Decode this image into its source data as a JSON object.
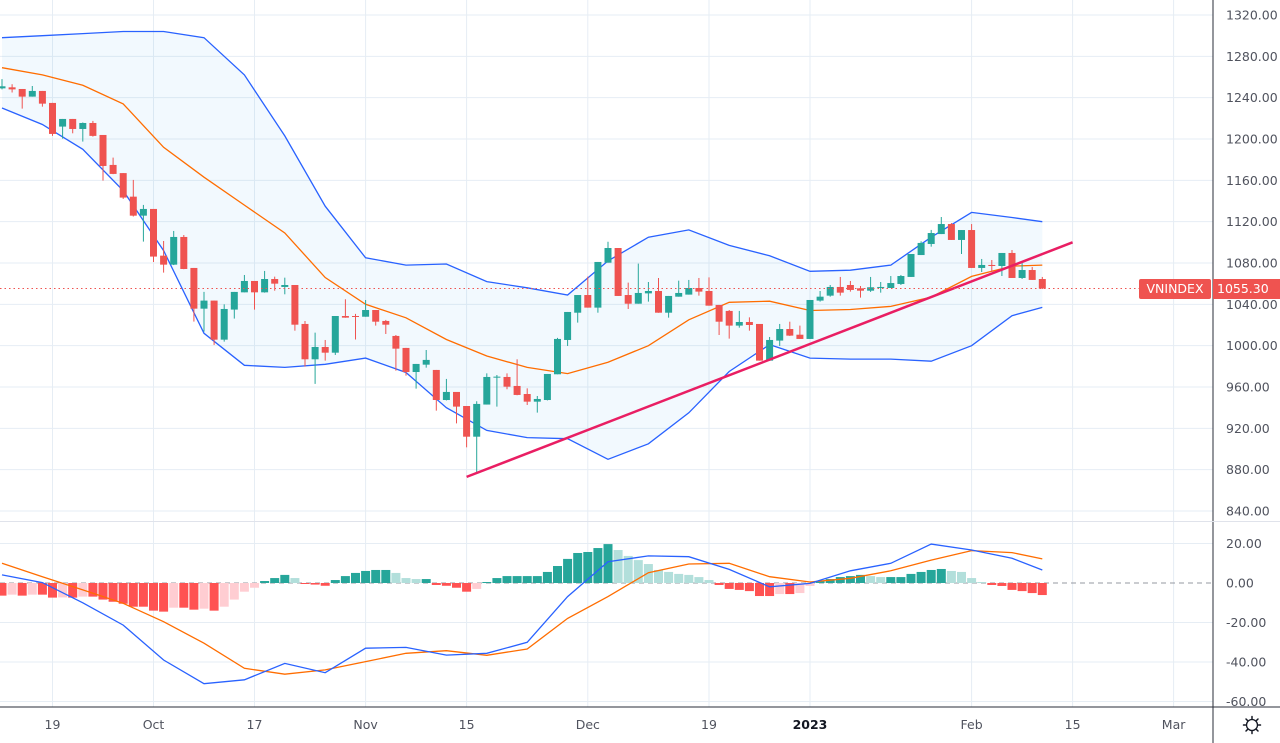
{
  "symbol": "VNINDEX",
  "last_price_label": "1055.30",
  "colors": {
    "up": "#26a69a",
    "down": "#ef5350",
    "hist_up_strong": "#26a69a",
    "hist_up_weak": "#b2dfdb",
    "hist_down_strong": "#ff5252",
    "hist_down_weak": "#ffcdd2",
    "bb_band": "#2962ff",
    "bb_basis": "#ff6d00",
    "bb_fill": "#2196f3",
    "macd": "#2962ff",
    "signal": "#ff6d00",
    "trendline": "#e91e63",
    "last_price": "#ef5350",
    "grid": "#e6edf4"
  },
  "settings_icon": "gear-icon",
  "chart_data": [
    {
      "type": "candlestick",
      "title": "",
      "yaxis": {
        "range": [
          830,
          1330
        ],
        "ticks": [
          "1320.00",
          "1280.00",
          "1240.00",
          "1200.00",
          "1160.00",
          "1120.00",
          "1080.00",
          "1040.00",
          "1000.00",
          "960.00",
          "920.00",
          "880.00",
          "840.00"
        ]
      },
      "xaxis": {
        "ticks": [
          {
            "label": "19",
            "date": "2022-09-19"
          },
          {
            "label": "Oct",
            "date": "2022-10-03"
          },
          {
            "label": "17",
            "date": "2022-10-17"
          },
          {
            "label": "Nov",
            "date": "2022-11-01"
          },
          {
            "label": "15",
            "date": "2022-11-15"
          },
          {
            "label": "Dec",
            "date": "2022-12-01"
          },
          {
            "label": "19",
            "date": "2022-12-19"
          },
          {
            "label": "2023",
            "date": "2023-01-03",
            "bold": true
          },
          {
            "label": "Feb",
            "date": "2023-02-01"
          },
          {
            "label": "15",
            "date": "2023-02-15"
          },
          {
            "label": "Mar",
            "date": "2023-03-01"
          }
        ]
      },
      "grid": true,
      "last_price": 1055.3,
      "candles_columns": [
        "date",
        "open",
        "high",
        "low",
        "close"
      ],
      "candles": [
        [
          "2022-09-12",
          1249,
          1258,
          1248,
          1251
        ],
        [
          "2022-09-13",
          1250,
          1253,
          1245,
          1248
        ],
        [
          "2022-09-14",
          1248.4,
          1248.4,
          1229.4,
          1241
        ],
        [
          "2022-09-15",
          1241,
          1251.3,
          1241,
          1246.5
        ],
        [
          "2022-09-16",
          1246.5,
          1246.5,
          1231.3,
          1234.2
        ],
        [
          "2022-09-19",
          1234.9,
          1235,
          1203,
          1204.9
        ],
        [
          "2022-09-20",
          1212,
          1219.4,
          1200.4,
          1219.4
        ],
        [
          "2022-09-21",
          1219.4,
          1219.4,
          1205.5,
          1209.7
        ],
        [
          "2022-09-22",
          1209.7,
          1216,
          1197.5,
          1215.5
        ],
        [
          "2022-09-23",
          1215.5,
          1217.5,
          1202.3,
          1203
        ],
        [
          "2022-09-26",
          1203.9,
          1203.9,
          1159.7,
          1173.9
        ],
        [
          "2022-09-27",
          1174.9,
          1182,
          1166,
          1166.2
        ],
        [
          "2022-09-28",
          1167,
          1167,
          1142,
          1143.3
        ],
        [
          "2022-09-29",
          1144.2,
          1160.4,
          1125,
          1125.8
        ],
        [
          "2022-09-30",
          1125.8,
          1136.2,
          1100.7,
          1132.3
        ],
        [
          "2022-10-03",
          1132.3,
          1132.3,
          1081,
          1086.2
        ],
        [
          "2022-10-04",
          1087.1,
          1101.3,
          1070.7,
          1078.4
        ],
        [
          "2022-10-05",
          1078.4,
          1111,
          1078,
          1105.2
        ],
        [
          "2022-10-06",
          1105.2,
          1107.1,
          1074,
          1074.2
        ],
        [
          "2022-10-07",
          1075.2,
          1075.2,
          1023.3,
          1035.8
        ],
        [
          "2022-10-10",
          1035.8,
          1052,
          1013.6,
          1043.6
        ],
        [
          "2022-10-11",
          1043.6,
          1043.6,
          1000.7,
          1005.8
        ],
        [
          "2022-10-12",
          1005.8,
          1040,
          1003.9,
          1035.5
        ],
        [
          "2022-10-13",
          1034.9,
          1052,
          1026.2,
          1052
        ],
        [
          "2022-10-14",
          1051.6,
          1068.4,
          1051.6,
          1062.6
        ],
        [
          "2022-10-17",
          1062.6,
          1062.6,
          1034.9,
          1051.6
        ],
        [
          "2022-10-18",
          1051.6,
          1072.3,
          1051.3,
          1064.5
        ],
        [
          "2022-10-19",
          1064.5,
          1066.8,
          1053.2,
          1060
        ],
        [
          "2022-10-20",
          1056.8,
          1065.8,
          1049.7,
          1058.7
        ],
        [
          "2022-10-21",
          1058.7,
          1058.7,
          1014.5,
          1020.3
        ],
        [
          "2022-10-24",
          1021,
          1023.9,
          979.7,
          986.8
        ],
        [
          "2022-10-25",
          986.8,
          1012.6,
          963,
          998.7
        ],
        [
          "2022-10-26",
          998.7,
          1005.5,
          985.5,
          993.2
        ],
        [
          "2022-10-27",
          993.2,
          1028.7,
          991,
          1028.7
        ],
        [
          "2022-10-28",
          1028.7,
          1044.9,
          1027,
          1027.1
        ],
        [
          "2022-10-31",
          1028.7,
          1030.7,
          1006,
          1028
        ],
        [
          "2022-11-01",
          1028,
          1044.2,
          1028,
          1034.5
        ],
        [
          "2022-11-02",
          1034.5,
          1034.5,
          1019.4,
          1023.2
        ],
        [
          "2022-11-03",
          1023.9,
          1024.9,
          1011.3,
          1020.3
        ],
        [
          "2022-11-04",
          1009.4,
          1010.3,
          975.8,
          997.1
        ],
        [
          "2022-11-07",
          997.8,
          997.8,
          971,
          974.5
        ],
        [
          "2022-11-08",
          974.5,
          982.3,
          958.4,
          982.3
        ],
        [
          "2022-11-09",
          981.6,
          995.8,
          978.7,
          986.2
        ],
        [
          "2022-11-10",
          976.5,
          976.5,
          937.1,
          947.4
        ],
        [
          "2022-11-11",
          947.4,
          967.8,
          947,
          955.2
        ],
        [
          "2022-11-14",
          955.2,
          955.2,
          924.8,
          941
        ],
        [
          "2022-11-15",
          941.6,
          941.6,
          901.6,
          911.9
        ],
        [
          "2022-11-16",
          911.9,
          946.2,
          876.5,
          943.6
        ],
        [
          "2022-11-17",
          943,
          973.2,
          943,
          969.7
        ],
        [
          "2022-11-18",
          969.3,
          971.6,
          941,
          970
        ],
        [
          "2022-11-21",
          969.7,
          973.2,
          957.8,
          960.3
        ],
        [
          "2022-11-22",
          961,
          986.8,
          952,
          952.3
        ],
        [
          "2022-11-23",
          953.2,
          958.7,
          942.6,
          945.8
        ],
        [
          "2022-11-24",
          945.8,
          951.3,
          935.2,
          948.4
        ],
        [
          "2022-11-25",
          947.4,
          972.6,
          947,
          972.6
        ],
        [
          "2022-11-28",
          972.3,
          1007.5,
          972.3,
          1006.5
        ],
        [
          "2022-11-29",
          1005.5,
          1032.6,
          999.7,
          1032.6
        ],
        [
          "2022-11-30",
          1031.9,
          1049,
          1022.3,
          1049
        ],
        [
          "2022-12-01",
          1049,
          1066.8,
          1036.8,
          1036.8
        ],
        [
          "2022-12-02",
          1036.8,
          1081,
          1031.9,
          1081
        ],
        [
          "2022-12-05",
          1080.3,
          1100.6,
          1080.3,
          1094.5
        ],
        [
          "2022-12-06",
          1094.5,
          1094.5,
          1048.1,
          1048.1
        ],
        [
          "2022-12-07",
          1049,
          1061,
          1035.5,
          1040.6
        ],
        [
          "2022-12-08",
          1040.6,
          1079.4,
          1040.6,
          1051
        ],
        [
          "2022-12-09",
          1050.6,
          1061.6,
          1042.6,
          1052.9
        ],
        [
          "2022-12-12",
          1052.9,
          1065.5,
          1031.9,
          1031.9
        ],
        [
          "2022-12-13",
          1031.9,
          1048.1,
          1027.1,
          1048.1
        ],
        [
          "2022-12-14",
          1047.4,
          1062.9,
          1047.4,
          1051
        ],
        [
          "2022-12-15",
          1049.4,
          1063.6,
          1049.4,
          1055.8
        ],
        [
          "2022-12-16",
          1055.8,
          1065.5,
          1048.4,
          1052.3
        ],
        [
          "2022-12-19",
          1052.9,
          1066.1,
          1038.7,
          1038.7
        ],
        [
          "2022-12-20",
          1039.4,
          1039.4,
          1010.3,
          1023.2
        ],
        [
          "2022-12-21",
          1033.6,
          1034.5,
          1006.8,
          1019.4
        ],
        [
          "2022-12-22",
          1019.4,
          1033.6,
          1017.4,
          1022.9
        ],
        [
          "2022-12-23",
          1022.9,
          1027.4,
          1014.5,
          1020
        ],
        [
          "2022-12-26",
          1021,
          1021,
          985.5,
          985.5
        ],
        [
          "2022-12-27",
          985.5,
          1008.4,
          985.5,
          1005.5
        ],
        [
          "2022-12-28",
          1004.9,
          1021,
          999.7,
          1016.1
        ],
        [
          "2022-12-29",
          1016.1,
          1023.2,
          1009.4,
          1009.7
        ],
        [
          "2022-12-30",
          1010.6,
          1019.4,
          1006.5,
          1006.5
        ],
        [
          "2023-01-03",
          1006.5,
          1044.2,
          1006.5,
          1044.2
        ],
        [
          "2023-01-04",
          1043.6,
          1052.9,
          1042.6,
          1047.4
        ],
        [
          "2023-01-05",
          1048.4,
          1058.7,
          1047.4,
          1056.8
        ],
        [
          "2023-01-06",
          1056.8,
          1066.5,
          1048.4,
          1051.3
        ],
        [
          "2023-01-09",
          1058.7,
          1062.6,
          1052.3,
          1053.9
        ],
        [
          "2023-01-10",
          1055.5,
          1057.7,
          1046.5,
          1053.2
        ],
        [
          "2023-01-11",
          1053.2,
          1066.5,
          1052,
          1056.5
        ],
        [
          "2023-01-12",
          1056.2,
          1061.6,
          1051.3,
          1056.8
        ],
        [
          "2023-01-13",
          1055.8,
          1067.4,
          1055.8,
          1060.6
        ],
        [
          "2023-01-16",
          1059.7,
          1068.4,
          1058.7,
          1067.4
        ],
        [
          "2023-01-17",
          1066.5,
          1088.7,
          1066.5,
          1088.7
        ],
        [
          "2023-01-18",
          1087.7,
          1101,
          1087.7,
          1099.4
        ],
        [
          "2023-01-19",
          1098.4,
          1112,
          1095.8,
          1109
        ],
        [
          "2023-01-27",
          1108,
          1124.5,
          1108,
          1117.7
        ],
        [
          "2023-01-30",
          1117.7,
          1118.7,
          1102.3,
          1102.3
        ],
        [
          "2023-01-31",
          1102.3,
          1111.9,
          1088.7,
          1111.9
        ],
        [
          "2023-02-01",
          1111.9,
          1117.7,
          1075.2,
          1075.2
        ],
        [
          "2023-02-02",
          1075.2,
          1083.9,
          1071.3,
          1078.1
        ],
        [
          "2023-02-03",
          1078.1,
          1082.9,
          1071.3,
          1077.1
        ],
        [
          "2023-02-06",
          1077.1,
          1089.7,
          1067.4,
          1089.7
        ],
        [
          "2023-02-07",
          1089.7,
          1092.6,
          1065.5,
          1065.5
        ],
        [
          "2023-02-08",
          1065.5,
          1080,
          1064.5,
          1073.2
        ],
        [
          "2023-02-09",
          1073.2,
          1076.1,
          1063.6,
          1063.6
        ],
        [
          "2023-02-10",
          1064.5,
          1066.5,
          1054.8,
          1055.3
        ]
      ],
      "overlay_dates": [
        "2022-09-12",
        "2022-09-16",
        "2022-09-22",
        "2022-09-28",
        "2022-10-04",
        "2022-10-10",
        "2022-10-14",
        "2022-10-20",
        "2022-10-26",
        "2022-11-01",
        "2022-11-07",
        "2022-11-11",
        "2022-11-17",
        "2022-11-23",
        "2022-11-29",
        "2022-12-05",
        "2022-12-09",
        "2022-12-15",
        "2022-12-21",
        "2022-12-27",
        "2023-01-03",
        "2023-01-09",
        "2023-01-13",
        "2023-01-19",
        "2023-02-01",
        "2023-02-07",
        "2023-02-10"
      ],
      "bollinger": {
        "upper": [
          1298,
          1300,
          1302,
          1304,
          1304,
          1298,
          1262,
          1203,
          1135,
          1085,
          1078,
          1079,
          1062,
          1056,
          1049,
          1082,
          1105,
          1112,
          1097,
          1087,
          1072,
          1073,
          1078,
          1105,
          1129,
          1124,
          1120
        ],
        "basis": [
          1269,
          1262,
          1252,
          1234,
          1192,
          1163,
          1136,
          1109,
          1066,
          1040,
          1027,
          1006,
          990,
          979,
          973,
          984,
          1000,
          1025,
          1042,
          1043,
          1034,
          1035,
          1038,
          1047,
          1067,
          1077,
          1078
        ],
        "lower": [
          1230,
          1214,
          1190,
          1150,
          1092,
          1012,
          981,
          979,
          982,
          988,
          974,
          940,
          918,
          911,
          910,
          890,
          905,
          935,
          975,
          1001,
          988,
          987,
          987,
          985,
          1000,
          1029,
          1037
        ]
      },
      "trendline": [
        {
          "date": "2022-11-15",
          "value": 873
        },
        {
          "date": "2023-02-15",
          "value": 1100
        }
      ]
    },
    {
      "type": "macd",
      "yaxis": {
        "range": [
          -63,
          30
        ],
        "ticks": [
          {
            "label": "20.00",
            "v": 20
          },
          {
            "label": "0.00",
            "v": 0
          },
          {
            "label": "-20.00",
            "v": -20
          },
          {
            "label": "-40.00",
            "v": -40
          },
          {
            "label": "-60.00",
            "v": -60
          }
        ]
      },
      "histogram": [
        -6.4,
        -5.9,
        -6.4,
        -5.9,
        -5.9,
        -7.4,
        -7.3,
        -7.4,
        -6.9,
        -6.9,
        -8.4,
        -9.5,
        -10.5,
        -12,
        -12,
        -14,
        -14.5,
        -12.5,
        -12.5,
        -13.5,
        -13,
        -14,
        -12,
        -8.4,
        -4.4,
        -2.4,
        1,
        2.5,
        4.1,
        2.5,
        -0.5,
        -0.8,
        -1.4,
        1.5,
        3.5,
        5.1,
        6.1,
        6.6,
        6.6,
        5.1,
        2.5,
        2,
        2,
        -1,
        -1.4,
        -2.4,
        -4.4,
        -3,
        0.5,
        2.5,
        3.5,
        3.5,
        3.5,
        3.5,
        5.6,
        8.6,
        12.2,
        15.2,
        15.7,
        17.7,
        19.7,
        16.7,
        13.7,
        11.6,
        9.6,
        6.6,
        5.6,
        4.6,
        4.1,
        3,
        1.5,
        -1,
        -3,
        -3.5,
        -4.1,
        -6.6,
        -6.6,
        -5.6,
        -5.6,
        -5.1,
        -1.5,
        1,
        2,
        3,
        3.5,
        4.1,
        3.5,
        3,
        3,
        3,
        4.6,
        5.6,
        6.6,
        7.1,
        6.1,
        5.6,
        2.5,
        0.5,
        -1,
        -1.5,
        -3.5,
        -4.1,
        -5.1,
        -6.1
      ],
      "macd": [
        4.1,
        0.2,
        -10,
        -21.3,
        -39,
        -51,
        -49,
        -40.7,
        -45.4,
        -33,
        -32.6,
        -36.5,
        -35.6,
        -30,
        -6.9,
        10.8,
        13.7,
        13.3,
        6.9,
        -1.9,
        -0.2,
        6.2,
        10,
        19.7,
        16.7,
        12.5,
        6.6
      ],
      "signal": [
        10,
        3.2,
        -3.5,
        -10.3,
        -19.6,
        -30.5,
        -43.2,
        -46.2,
        -44,
        -39.8,
        -35.6,
        -34.3,
        -36.6,
        -33.4,
        -17.9,
        -6.9,
        5.2,
        9.6,
        10,
        3.2,
        0.5,
        2.4,
        6.2,
        11.6,
        16.4,
        15.4,
        12.2
      ]
    }
  ]
}
